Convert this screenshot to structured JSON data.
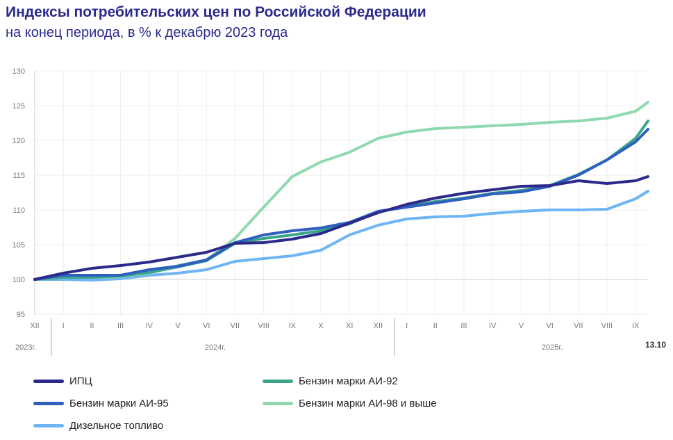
{
  "chart_data": {
    "type": "line",
    "title": "Индексы потребительских цен по Российской Федерации",
    "subtitle": "на конец периода, в % к декабрю 2023 года",
    "x": [
      "XII",
      "I",
      "II",
      "III",
      "IV",
      "V",
      "VI",
      "VII",
      "VIII",
      "IX",
      "X",
      "XI",
      "XII",
      "I",
      "II",
      "III",
      "IV",
      "V",
      "VI",
      "VII",
      "VIII",
      "IX",
      "13.10"
    ],
    "x_tick_labels": [
      "XII",
      "I",
      "II",
      "III",
      "IV",
      "V",
      "VI",
      "VII",
      "VIII",
      "IX",
      "X",
      "XI",
      "XII",
      "I",
      "II",
      "III",
      "IV",
      "V",
      "VI",
      "VII",
      "VIII",
      "IX"
    ],
    "year_labels": [
      "2023г.",
      "2024г.",
      "2025г."
    ],
    "last_point_label": "13.10",
    "ylim": [
      95,
      130
    ],
    "yticks": [
      95,
      100,
      105,
      110,
      115,
      120,
      125,
      130
    ],
    "grid": true,
    "legend_position": "bottom",
    "series": [
      {
        "name": "ИПЦ",
        "color": "#2b2a8c",
        "values": [
          100,
          100.9,
          101.6,
          102.0,
          102.5,
          103.2,
          103.9,
          105.2,
          105.3,
          105.8,
          106.6,
          108.1,
          109.6,
          110.8,
          111.7,
          112.4,
          112.9,
          113.4,
          113.5,
          114.2,
          113.8,
          114.2,
          114.8
        ]
      },
      {
        "name": "Бензин марки АИ-92",
        "color": "#3aa58a",
        "values": [
          100,
          100.3,
          100.3,
          100.5,
          101.0,
          101.8,
          102.7,
          105.2,
          105.9,
          106.4,
          107.0,
          108.0,
          109.7,
          110.5,
          111.2,
          111.7,
          112.4,
          112.8,
          113.5,
          115.1,
          117.2,
          120.3,
          122.8
        ]
      },
      {
        "name": "Бензин марки АИ-95",
        "color": "#2f5fbf",
        "values": [
          100,
          100.6,
          100.6,
          100.6,
          101.4,
          101.9,
          102.8,
          105.3,
          106.4,
          107.0,
          107.4,
          108.2,
          109.8,
          110.4,
          111.0,
          111.6,
          112.3,
          112.6,
          113.4,
          115.0,
          117.2,
          119.8,
          121.6
        ]
      },
      {
        "name": "Бензин марки АИ-98 и выше",
        "color": "#8fd8b0",
        "values": [
          100,
          100.4,
          100.3,
          100.4,
          100.9,
          102.0,
          102.8,
          105.9,
          110.4,
          114.8,
          116.9,
          118.3,
          120.3,
          121.2,
          121.7,
          121.9,
          122.1,
          122.3,
          122.6,
          122.8,
          123.2,
          124.2,
          125.5
        ]
      },
      {
        "name": "Дизельное топливо",
        "color": "#6fb5f5",
        "values": [
          100,
          100.0,
          99.9,
          100.1,
          100.6,
          100.9,
          101.4,
          102.6,
          103.0,
          103.4,
          104.2,
          106.4,
          107.8,
          108.7,
          109.0,
          109.1,
          109.5,
          109.8,
          110.0,
          110.0,
          110.1,
          111.6,
          112.7
        ]
      }
    ]
  }
}
